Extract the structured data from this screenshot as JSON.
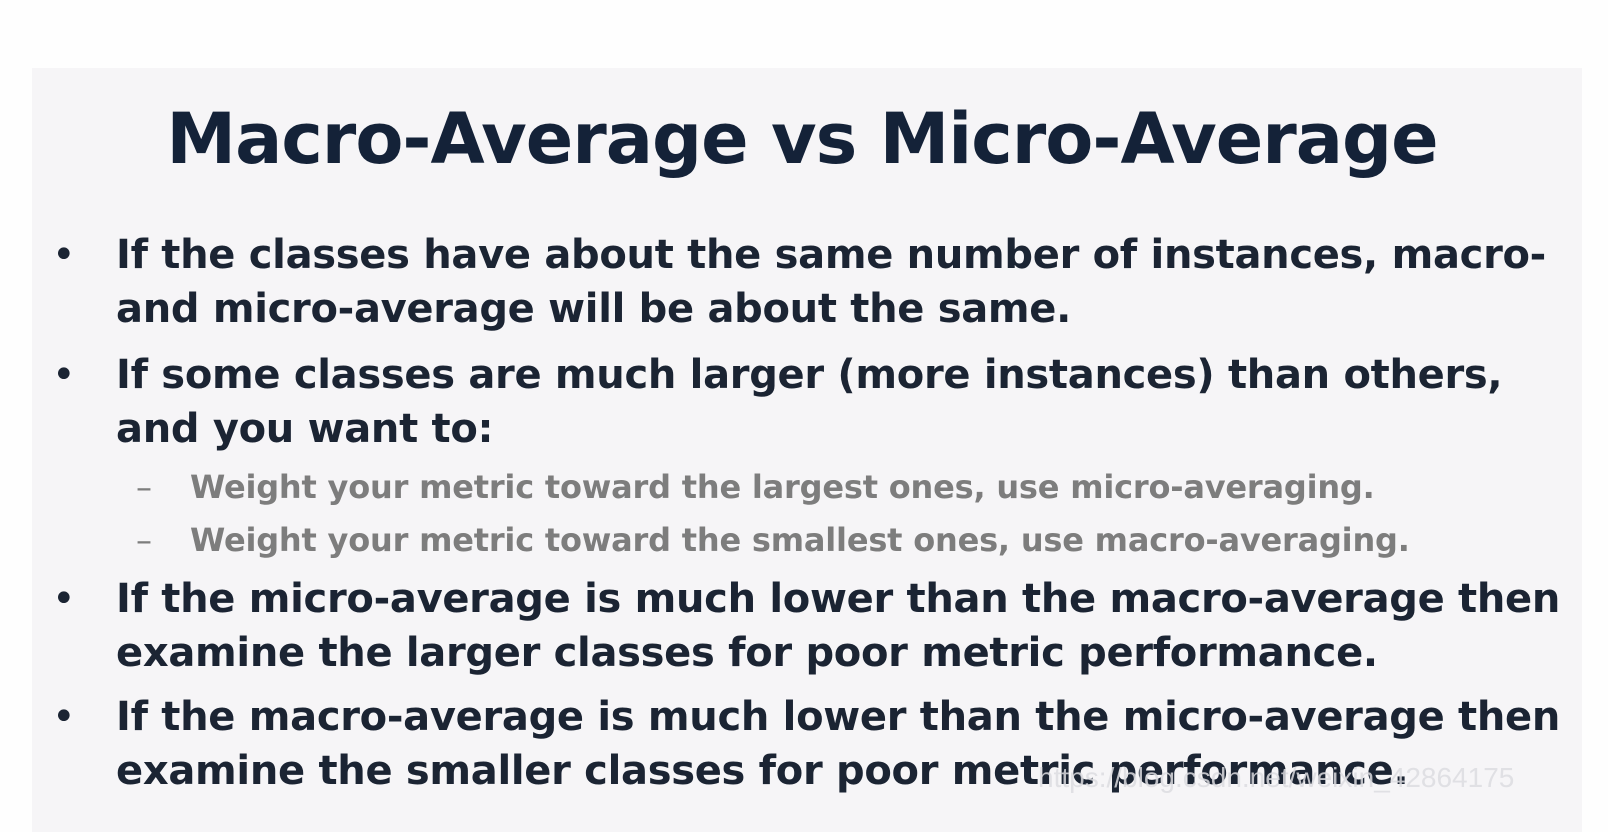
{
  "slide": {
    "title": "Macro-Average vs Micro-Average",
    "bullets": [
      {
        "lines": [
          "If the classes have about the same number of instances, macro-",
          "and micro-average will be about the same."
        ]
      },
      {
        "lines": [
          "If some classes are much larger (more instances) than others,",
          "and you want to:"
        ],
        "sub_items": [
          "Weight your metric toward the largest ones, use micro-averaging.",
          "Weight your metric toward the smallest ones, use macro-averaging."
        ]
      },
      {
        "lines": [
          "If the micro-average is much lower than the macro-average then",
          "examine the larger classes for poor metric performance."
        ]
      },
      {
        "lines": [
          "If the macro-average is much lower than the micro-average then",
          "examine the smaller classes for poor metric performance."
        ]
      }
    ],
    "bullet_symbol": "•",
    "sub_symbol": "–"
  },
  "watermark": "https://blog.csdn.net/weixin_42864175",
  "colors": {
    "title": "#142238",
    "body_text": "#1b2433",
    "sub_text": "#7d7d7d",
    "slide_background": "#f6f5f7"
  }
}
